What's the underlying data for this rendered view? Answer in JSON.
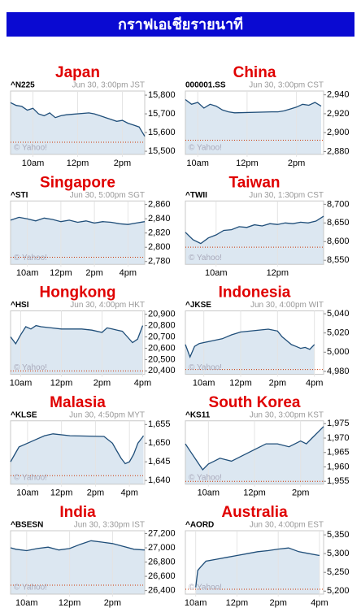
{
  "header": {
    "title": "กราฟเอเชียรายนาที"
  },
  "source": "© Yahoo!",
  "chart_data": [
    {
      "type": "line",
      "title": "Japan",
      "symbol": "^N225",
      "timestamp": "Jun 30, 3:00pm JST",
      "color": "#1f4e79",
      "fill": "#dce7f1",
      "prev_close": 15548,
      "prev_close_color": "#cc3300",
      "x": [
        9,
        9.25,
        9.5,
        9.75,
        10,
        10.25,
        10.5,
        10.75,
        11,
        11.25,
        11.5,
        12.5,
        12.75,
        13,
        13.25,
        13.5,
        13.75,
        14,
        14.25,
        14.5,
        14.75,
        15
      ],
      "values": [
        15760,
        15745,
        15740,
        15720,
        15730,
        15700,
        15690,
        15705,
        15680,
        15690,
        15695,
        15705,
        15700,
        15690,
        15680,
        15670,
        15660,
        15665,
        15650,
        15640,
        15630,
        15580
      ],
      "xlim": [
        9,
        15
      ],
      "xticks": [
        {
          "value": 10,
          "label": "10am"
        },
        {
          "value": 12,
          "label": "12pm"
        },
        {
          "value": 14,
          "label": "2pm"
        }
      ],
      "ylim": [
        15483,
        15822
      ],
      "yticks": [
        {
          "value": 15800,
          "label": "15,800"
        },
        {
          "value": 15700,
          "label": "15,700"
        },
        {
          "value": 15600,
          "label": "15,600"
        },
        {
          "value": 15500,
          "label": "15,500"
        }
      ]
    },
    {
      "type": "line",
      "title": "China",
      "symbol": "000001.SS",
      "timestamp": "Jun 30, 3:00pm CST",
      "color": "#1f4e79",
      "fill": "#dce7f1",
      "prev_close": 2892,
      "prev_close_color": "#cc3300",
      "x": [
        9.5,
        9.75,
        10,
        10.25,
        10.5,
        10.75,
        11,
        11.25,
        11.5,
        13,
        13.25,
        13.5,
        13.75,
        14,
        14.25,
        14.5,
        14.75,
        15
      ],
      "values": [
        2935,
        2930,
        2932,
        2926,
        2930,
        2928,
        2924,
        2922,
        2921,
        2922,
        2922,
        2923,
        2925,
        2927,
        2930,
        2929,
        2932,
        2928
      ],
      "xlim": [
        9.5,
        15.1
      ],
      "xticks": [
        {
          "value": 10,
          "label": "10am"
        },
        {
          "value": 12,
          "label": "12pm"
        },
        {
          "value": 14,
          "label": "2pm"
        }
      ],
      "ylim": [
        2877,
        2944
      ],
      "yticks": [
        {
          "value": 2940,
          "label": "2,940"
        },
        {
          "value": 2920,
          "label": "2,920"
        },
        {
          "value": 2900,
          "label": "2,900"
        },
        {
          "value": 2880,
          "label": "2,880"
        }
      ]
    },
    {
      "type": "line",
      "title": "Singapore",
      "symbol": "^STI",
      "timestamp": "Jun 30, 5:00pm SGT",
      "color": "#1f4e79",
      "fill": "#dce7f1",
      "prev_close": 2786,
      "prev_close_color": "#cc3300",
      "x": [
        9,
        9.5,
        10,
        10.5,
        11,
        11.5,
        12,
        12.5,
        13,
        13.5,
        14,
        14.5,
        15,
        15.5,
        16,
        16.5,
        17
      ],
      "values": [
        2838,
        2842,
        2840,
        2837,
        2841,
        2839,
        2836,
        2838,
        2835,
        2837,
        2834,
        2836,
        2835,
        2833,
        2832,
        2834,
        2836
      ],
      "xlim": [
        9,
        17
      ],
      "xticks": [
        {
          "value": 10,
          "label": "10am"
        },
        {
          "value": 12,
          "label": "12pm"
        },
        {
          "value": 14,
          "label": "2pm"
        },
        {
          "value": 16,
          "label": "4pm"
        }
      ],
      "ylim": [
        2776,
        2865
      ],
      "yticks": [
        {
          "value": 2860,
          "label": "2,860"
        },
        {
          "value": 2840,
          "label": "2,840"
        },
        {
          "value": 2820,
          "label": "2,820"
        },
        {
          "value": 2800,
          "label": "2,800"
        },
        {
          "value": 2780,
          "label": "2,780"
        }
      ]
    },
    {
      "type": "line",
      "title": "Taiwan",
      "symbol": "^TWII",
      "timestamp": "Jun 30, 1:30pm CST",
      "color": "#1f4e79",
      "fill": "#dce7f1",
      "prev_close": 8585,
      "prev_close_color": "#cc3300",
      "x": [
        9,
        9.25,
        9.5,
        9.75,
        10,
        10.25,
        10.5,
        10.75,
        11,
        11.25,
        11.5,
        11.75,
        12,
        12.25,
        12.5,
        12.75,
        13,
        13.25,
        13.5
      ],
      "values": [
        8625,
        8605,
        8595,
        8610,
        8618,
        8630,
        8632,
        8640,
        8638,
        8645,
        8642,
        8648,
        8646,
        8650,
        8648,
        8652,
        8650,
        8655,
        8668
      ],
      "xlim": [
        9,
        13.5
      ],
      "xticks": [
        {
          "value": 10,
          "label": "10am"
        },
        {
          "value": 12,
          "label": "12pm"
        }
      ],
      "ylim": [
        8539,
        8709
      ],
      "yticks": [
        {
          "value": 8700,
          "label": "8,700"
        },
        {
          "value": 8650,
          "label": "8,650"
        },
        {
          "value": 8600,
          "label": "8,600"
        },
        {
          "value": 8550,
          "label": "8,550"
        }
      ]
    },
    {
      "type": "line",
      "title": "Hongkong",
      "symbol": "^HSI",
      "timestamp": "Jun 30, 4:00pm HKT",
      "color": "#1f4e79",
      "fill": "#dce7f1",
      "prev_close": 20400,
      "prev_close_color": "#cc3300",
      "x": [
        9.5,
        9.75,
        10,
        10.25,
        10.5,
        10.75,
        11,
        11.5,
        12,
        13,
        13.5,
        14,
        14.25,
        14.5,
        14.75,
        15,
        15.25,
        15.5,
        15.75,
        16
      ],
      "values": [
        20700,
        20640,
        20720,
        20790,
        20770,
        20800,
        20790,
        20780,
        20770,
        20770,
        20760,
        20740,
        20780,
        20770,
        20760,
        20750,
        20700,
        20650,
        20680,
        20800
      ],
      "xlim": [
        9.5,
        16.1
      ],
      "xticks": [
        {
          "value": 10,
          "label": "10am"
        },
        {
          "value": 12,
          "label": "12pm"
        },
        {
          "value": 14,
          "label": "2pm"
        },
        {
          "value": 16,
          "label": "4pm"
        }
      ],
      "ylim": [
        20370,
        20930
      ],
      "yticks": [
        {
          "value": 20900,
          "label": "20,900"
        },
        {
          "value": 20800,
          "label": "20,800"
        },
        {
          "value": 20700,
          "label": "20,700"
        },
        {
          "value": 20600,
          "label": "20,600"
        },
        {
          "value": 20500,
          "label": "20,500"
        },
        {
          "value": 20400,
          "label": "20,400"
        }
      ]
    },
    {
      "type": "line",
      "title": "Indonesia",
      "symbol": "^JKSE",
      "timestamp": "Jun 30, 4:00pm WIT",
      "color": "#1f4e79",
      "fill": "#dce7f1",
      "prev_close": 4982,
      "prev_close_color": "#cc3300",
      "x": [
        9,
        9.25,
        9.5,
        9.75,
        10,
        10.5,
        11,
        11.5,
        12,
        13.5,
        14,
        14.25,
        14.5,
        14.75,
        15,
        15.25,
        15.5,
        15.75,
        16
      ],
      "values": [
        5008,
        4995,
        5006,
        5009,
        5010,
        5012,
        5014,
        5018,
        5021,
        5024,
        5022,
        5016,
        5012,
        5008,
        5006,
        5004,
        5005,
        5003,
        5008
      ],
      "xlim": [
        9,
        16.5
      ],
      "xticks": [
        {
          "value": 10,
          "label": "10am"
        },
        {
          "value": 12,
          "label": "12pm"
        },
        {
          "value": 14,
          "label": "2pm"
        },
        {
          "value": 16,
          "label": "4pm"
        }
      ],
      "ylim": [
        4977,
        5043
      ],
      "yticks": [
        {
          "value": 5040,
          "label": "5,040"
        },
        {
          "value": 5020,
          "label": "5,020"
        },
        {
          "value": 5000,
          "label": "5,000"
        },
        {
          "value": 4980,
          "label": "4,980"
        }
      ]
    },
    {
      "type": "line",
      "title": "Malasia",
      "symbol": "^KLSE",
      "timestamp": "Jun 30, 4:50pm MYT",
      "color": "#1f4e79",
      "fill": "#dce7f1",
      "prev_close": 1641.3,
      "prev_close_color": "#cc3300",
      "x": [
        9,
        9.25,
        9.5,
        10,
        10.5,
        11,
        11.5,
        12.5,
        14.5,
        15,
        15.25,
        15.5,
        15.75,
        16,
        16.25,
        16.5,
        16.75,
        16.83
      ],
      "values": [
        1645,
        1647,
        1649,
        1650,
        1651,
        1652,
        1652.5,
        1652,
        1651.8,
        1650,
        1648,
        1646,
        1644.5,
        1645,
        1647,
        1650,
        1651.5,
        1652
      ],
      "xlim": [
        9,
        16.9
      ],
      "xticks": [
        {
          "value": 10,
          "label": "10am"
        },
        {
          "value": 12,
          "label": "12pm"
        },
        {
          "value": 14,
          "label": "2pm"
        },
        {
          "value": 16,
          "label": "4pm"
        }
      ],
      "ylim": [
        1639,
        1656
      ],
      "yticks": [
        {
          "value": 1655,
          "label": "1,655"
        },
        {
          "value": 1650,
          "label": "1,650"
        },
        {
          "value": 1645,
          "label": "1,645"
        },
        {
          "value": 1640,
          "label": "1,640"
        }
      ]
    },
    {
      "type": "line",
      "title": "South Korea",
      "symbol": "^KS11",
      "timestamp": "Jun 30, 3:00pm KST",
      "color": "#1f4e79",
      "fill": "#dce7f1",
      "prev_close": 1955,
      "prev_close_color": "#cc3300",
      "x": [
        9,
        9.25,
        9.5,
        9.75,
        10,
        10.25,
        10.5,
        11,
        11.5,
        12,
        12.5,
        13,
        13.5,
        14,
        14.25,
        14.5,
        14.75,
        15
      ],
      "values": [
        1968,
        1965,
        1962,
        1959,
        1961,
        1962,
        1963,
        1962,
        1964,
        1966,
        1968,
        1968,
        1967,
        1969,
        1968,
        1970,
        1972,
        1974
      ],
      "xlim": [
        9,
        15
      ],
      "xticks": [
        {
          "value": 10,
          "label": "10am"
        },
        {
          "value": 12,
          "label": "12pm"
        },
        {
          "value": 14,
          "label": "2pm"
        }
      ],
      "ylim": [
        1954,
        1976
      ],
      "yticks": [
        {
          "value": 1975,
          "label": "1,975"
        },
        {
          "value": 1970,
          "label": "1,970"
        },
        {
          "value": 1965,
          "label": "1,965"
        },
        {
          "value": 1960,
          "label": "1,960"
        },
        {
          "value": 1955,
          "label": "1,955"
        }
      ]
    },
    {
      "type": "line",
      "title": "India",
      "symbol": "^BSESN",
      "timestamp": "Jun 30, 3:30pm IST",
      "color": "#1f4e79",
      "fill": "#dce7f1",
      "prev_close": 26475,
      "prev_close_color": "#cc3300",
      "x": [
        9.25,
        9.5,
        10,
        10.5,
        11,
        11.5,
        12,
        12.5,
        13,
        13.5,
        14,
        14.5,
        15,
        15.5
      ],
      "values": [
        27000,
        26980,
        26960,
        26990,
        27010,
        26970,
        26990,
        27050,
        27100,
        27080,
        27060,
        27020,
        26980,
        26970
      ],
      "xlim": [
        9.25,
        15.5
      ],
      "xticks": [
        {
          "value": 10,
          "label": "10am"
        },
        {
          "value": 12,
          "label": "12pm"
        },
        {
          "value": 14,
          "label": "2pm"
        }
      ],
      "ylim": [
        26350,
        27240
      ],
      "yticks": [
        {
          "value": 27200,
          "label": "27,200"
        },
        {
          "value": 27000,
          "label": "27,000"
        },
        {
          "value": 26800,
          "label": "26,800"
        },
        {
          "value": 26600,
          "label": "26,600"
        },
        {
          "value": 26400,
          "label": "26,400"
        }
      ]
    },
    {
      "type": "line",
      "title": "Australia",
      "symbol": "^AORD",
      "timestamp": "Jun 30, 4:00pm EST",
      "color": "#1f4e79",
      "fill": "#dce7f1",
      "prev_close": 5205,
      "prev_close_color": "#cc3300",
      "x": [
        10,
        10.1,
        10.25,
        10.5,
        11,
        11.5,
        12,
        12.5,
        13,
        13.5,
        14,
        14.5,
        15,
        15.5,
        16
      ],
      "values": [
        5210,
        5255,
        5265,
        5280,
        5285,
        5290,
        5295,
        5300,
        5305,
        5308,
        5312,
        5315,
        5305,
        5300,
        5295
      ],
      "xlim": [
        9.5,
        16.2
      ],
      "xticks": [
        {
          "value": 10,
          "label": "10am"
        },
        {
          "value": 12,
          "label": "12pm"
        },
        {
          "value": 14,
          "label": "2pm"
        },
        {
          "value": 16,
          "label": "4pm"
        }
      ],
      "ylim": [
        5192,
        5361
      ],
      "yticks": [
        {
          "value": 5350,
          "label": "5,350"
        },
        {
          "value": 5300,
          "label": "5,300"
        },
        {
          "value": 5250,
          "label": "5,250"
        },
        {
          "value": 5200,
          "label": "5,200"
        }
      ]
    }
  ]
}
